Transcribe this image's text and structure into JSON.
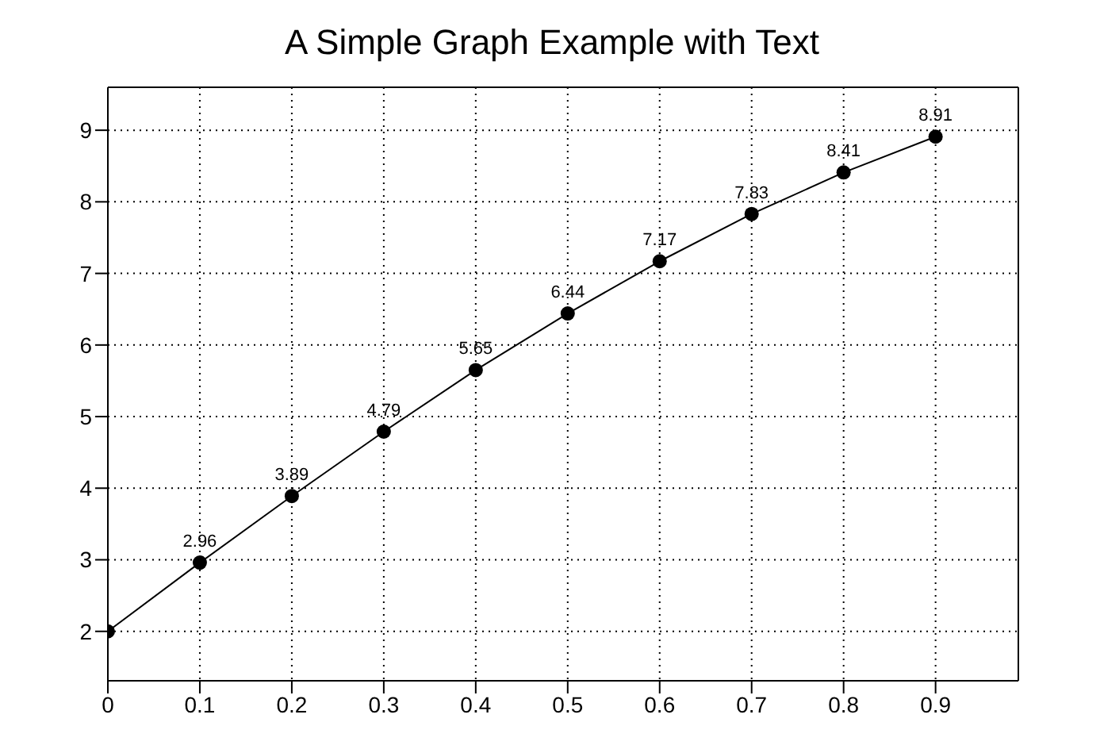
{
  "chart_data": {
    "type": "line",
    "title": "A Simple Graph Example with Text",
    "x": [
      0,
      0.1,
      0.2,
      0.3,
      0.4,
      0.5,
      0.6,
      0.7,
      0.8,
      0.9
    ],
    "series": [
      {
        "color": "#000000",
        "values": [
          2,
          2.96,
          3.89,
          4.79,
          5.65,
          6.44,
          7.17,
          7.83,
          8.41,
          8.91
        ],
        "value_labels": [
          null,
          "2.96",
          "3.89",
          "4.79",
          "5.65",
          "6.44",
          "7.17",
          "7.83",
          "8.41",
          "8.91"
        ]
      }
    ],
    "xlim": [
      0,
      0.99
    ],
    "xticks": [
      0,
      0.1,
      0.2,
      0.3,
      0.4,
      0.5,
      0.6,
      0.7,
      0.8,
      0.9
    ],
    "ylim": [
      1.31,
      9.6
    ],
    "yticks": [
      2,
      3,
      4,
      5,
      6,
      7,
      8,
      9
    ],
    "grid": true,
    "marker": "circle",
    "line_style": "solid",
    "legend": false
  }
}
